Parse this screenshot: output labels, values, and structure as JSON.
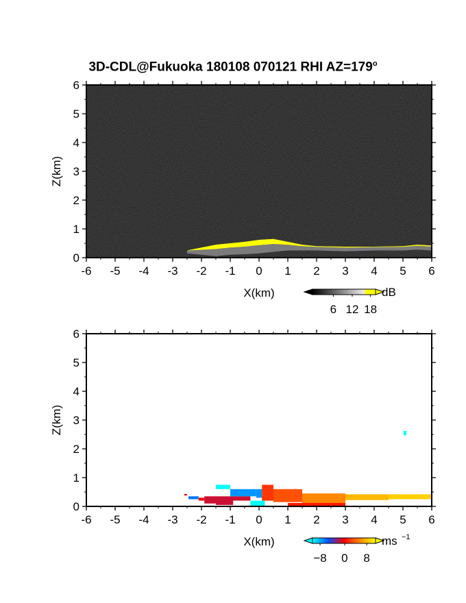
{
  "title_main": "3D-CDL@Fukuoka 180108 070121 RHI AZ=179",
  "title_suffix": "o",
  "chart_data": [
    {
      "type": "heatmap",
      "name": "reflectivity",
      "xlabel": "X(km)",
      "ylabel": "Z(km)",
      "xlim": [
        -6,
        6
      ],
      "ylim": [
        0,
        6
      ],
      "xticks": [
        "-6",
        "-5",
        "-4",
        "-3",
        "-2",
        "-1",
        "0",
        "1",
        "2",
        "3",
        "4",
        "5",
        "6"
      ],
      "yticks": [
        "0",
        "1",
        "2",
        "3",
        "4",
        "5",
        "6"
      ],
      "background": "#1e1e1e",
      "colorbar": {
        "unit": "dB",
        "ticks": [
          "6",
          "12",
          "18"
        ],
        "range": [
          0,
          21
        ],
        "colors": [
          "#000000",
          "#ffffff",
          "#ffff00"
        ]
      },
      "echo_color": "#ffff00",
      "echo_layer": [
        {
          "x": -2.5,
          "top": 0.25,
          "bottom": 0.15
        },
        {
          "x": -2.0,
          "top": 0.35,
          "bottom": 0.1
        },
        {
          "x": -1.5,
          "top": 0.45,
          "bottom": 0.05
        },
        {
          "x": -1.0,
          "top": 0.5,
          "bottom": 0.1
        },
        {
          "x": -0.5,
          "top": 0.55,
          "bottom": 0.12
        },
        {
          "x": 0.0,
          "top": 0.62,
          "bottom": 0.15
        },
        {
          "x": 0.5,
          "top": 0.65,
          "bottom": 0.2
        },
        {
          "x": 1.0,
          "top": 0.55,
          "bottom": 0.25
        },
        {
          "x": 1.5,
          "top": 0.45,
          "bottom": 0.25
        },
        {
          "x": 2.0,
          "top": 0.4,
          "bottom": 0.25
        },
        {
          "x": 3.0,
          "top": 0.38,
          "bottom": 0.22
        },
        {
          "x": 4.0,
          "top": 0.38,
          "bottom": 0.25
        },
        {
          "x": 5.0,
          "top": 0.4,
          "bottom": 0.25
        },
        {
          "x": 5.5,
          "top": 0.45,
          "bottom": 0.28
        },
        {
          "x": 6.0,
          "top": 0.42,
          "bottom": 0.25
        }
      ]
    },
    {
      "type": "heatmap",
      "name": "doppler_velocity",
      "xlabel": "X(km)",
      "ylabel": "Z(km)",
      "xlim": [
        -6,
        6
      ],
      "ylim": [
        0,
        6
      ],
      "xticks": [
        "-6",
        "-5",
        "-4",
        "-3",
        "-2",
        "-1",
        "0",
        "1",
        "2",
        "3",
        "4",
        "5",
        "6"
      ],
      "yticks": [
        "0",
        "1",
        "2",
        "3",
        "4",
        "5",
        "6"
      ],
      "background": "#ffffff",
      "colorbar": {
        "unit": "ms",
        "unit_sup": "−1",
        "ticks": [
          "−8",
          "0",
          "8"
        ],
        "range": [
          -10,
          10
        ],
        "colors": [
          "#00ffff",
          "#0000ff",
          "#ff0000",
          "#ffff00"
        ]
      },
      "velocity_regions": [
        {
          "x0": -2.6,
          "x1": -2.5,
          "z0": 0.38,
          "z1": 0.43,
          "v": 0
        },
        {
          "x0": -2.45,
          "x1": -2.1,
          "z0": 0.25,
          "z1": 0.35,
          "v": -6
        },
        {
          "x0": -2.1,
          "x1": -1.9,
          "z0": 0.2,
          "z1": 0.3,
          "v": 0
        },
        {
          "x0": -1.9,
          "x1": -1.5,
          "z0": 0.1,
          "z1": 0.35,
          "v": -1
        },
        {
          "x0": -1.5,
          "x1": -0.9,
          "z0": 0.05,
          "z1": 0.35,
          "v": -1
        },
        {
          "x0": -1.5,
          "x1": -1.0,
          "z0": 0.6,
          "z1": 0.75,
          "v": -10
        },
        {
          "x0": -1.0,
          "x1": -0.3,
          "z0": 0.2,
          "z1": 0.35,
          "v": -1
        },
        {
          "x0": -1.0,
          "x1": -0.1,
          "z0": 0.35,
          "z1": 0.6,
          "v": -7
        },
        {
          "x0": -0.1,
          "x1": 0.1,
          "z0": 0.3,
          "z1": 0.6,
          "v": -7
        },
        {
          "x0": -0.3,
          "x1": 0.2,
          "z0": 0.0,
          "z1": 0.2,
          "v": -10
        },
        {
          "x0": 0.1,
          "x1": 0.5,
          "z0": 0.2,
          "z1": 0.75,
          "v": 2
        },
        {
          "x0": 0.5,
          "x1": 1.5,
          "z0": 0.15,
          "z1": 0.6,
          "v": 3
        },
        {
          "x0": 1.5,
          "x1": 3.0,
          "z0": 0.1,
          "z1": 0.45,
          "v": 5
        },
        {
          "x0": 1.0,
          "x1": 3.0,
          "z0": 0.0,
          "z1": 0.12,
          "v": 1
        },
        {
          "x0": 3.0,
          "x1": 4.5,
          "z0": 0.22,
          "z1": 0.42,
          "v": 7
        },
        {
          "x0": 4.5,
          "x1": 6.0,
          "z0": 0.25,
          "z1": 0.42,
          "v": 8
        },
        {
          "x0": 5.02,
          "x1": 5.12,
          "z0": 2.47,
          "z1": 2.62,
          "v": -10
        }
      ]
    }
  ]
}
